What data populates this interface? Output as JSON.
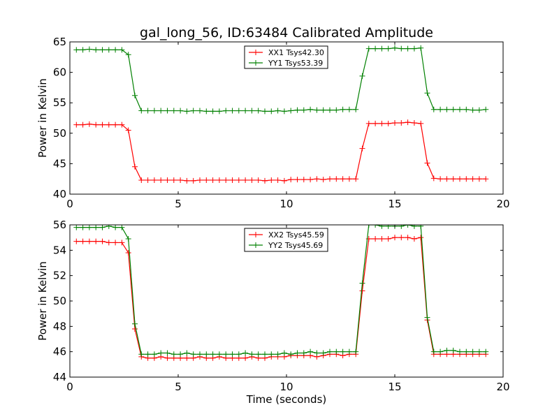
{
  "title": "gal_long_56, ID:63484 Calibrated Amplitude",
  "chart_data": [
    {
      "type": "line",
      "xlim": [
        0,
        20
      ],
      "ylim": [
        40,
        65
      ],
      "xticks": [
        0,
        5,
        10,
        15,
        20
      ],
      "yticks": [
        40,
        45,
        50,
        55,
        60,
        65
      ],
      "xlabel": "",
      "ylabel": "Power in Kelvin",
      "grid": false,
      "legend_position": "top-center",
      "x": [
        0.3,
        0.6,
        0.9,
        1.2,
        1.5,
        1.8,
        2.1,
        2.4,
        2.7,
        3.0,
        3.3,
        3.6,
        3.9,
        4.2,
        4.5,
        4.8,
        5.1,
        5.4,
        5.7,
        6.0,
        6.3,
        6.6,
        6.9,
        7.2,
        7.5,
        7.8,
        8.1,
        8.4,
        8.7,
        9.0,
        9.3,
        9.6,
        9.9,
        10.2,
        10.5,
        10.8,
        11.1,
        11.4,
        11.7,
        12.0,
        12.3,
        12.6,
        12.9,
        13.2,
        13.5,
        13.8,
        14.1,
        14.4,
        14.7,
        15.0,
        15.3,
        15.6,
        15.9,
        16.2,
        16.5,
        16.8,
        17.1,
        17.4,
        17.7,
        18.0,
        18.3,
        18.6,
        18.9,
        19.2
      ],
      "series": [
        {
          "name": "XX1 Tsys42.30",
          "color": "#ff0000",
          "values": [
            51.4,
            51.4,
            51.5,
            51.4,
            51.4,
            51.4,
            51.4,
            51.4,
            50.5,
            44.5,
            42.3,
            42.3,
            42.3,
            42.3,
            42.3,
            42.3,
            42.3,
            42.2,
            42.2,
            42.3,
            42.3,
            42.3,
            42.3,
            42.3,
            42.3,
            42.3,
            42.3,
            42.3,
            42.3,
            42.2,
            42.3,
            42.3,
            42.2,
            42.4,
            42.4,
            42.4,
            42.4,
            42.5,
            42.4,
            42.5,
            42.5,
            42.5,
            42.5,
            42.5,
            47.5,
            51.6,
            51.6,
            51.6,
            51.6,
            51.7,
            51.7,
            51.8,
            51.7,
            51.6,
            45.1,
            42.6,
            42.5,
            42.5,
            42.5,
            42.5,
            42.5,
            42.5,
            42.5,
            42.5
          ]
        },
        {
          "name": "YY1 Tsys53.39",
          "color": "#008000",
          "values": [
            63.7,
            63.7,
            63.8,
            63.7,
            63.7,
            63.7,
            63.7,
            63.7,
            62.9,
            56.2,
            53.7,
            53.7,
            53.7,
            53.7,
            53.7,
            53.7,
            53.7,
            53.6,
            53.7,
            53.7,
            53.6,
            53.6,
            53.6,
            53.7,
            53.7,
            53.7,
            53.7,
            53.7,
            53.7,
            53.6,
            53.6,
            53.7,
            53.6,
            53.7,
            53.8,
            53.8,
            53.9,
            53.8,
            53.8,
            53.8,
            53.8,
            53.9,
            53.9,
            53.9,
            59.4,
            63.9,
            63.9,
            63.9,
            63.9,
            64.0,
            63.9,
            63.9,
            63.9,
            64.0,
            56.6,
            53.9,
            53.9,
            53.9,
            53.9,
            53.9,
            53.9,
            53.8,
            53.8,
            53.9
          ]
        }
      ]
    },
    {
      "type": "line",
      "xlim": [
        0,
        20
      ],
      "ylim": [
        44,
        56
      ],
      "xticks": [
        0,
        5,
        10,
        15,
        20
      ],
      "yticks": [
        44,
        46,
        48,
        50,
        52,
        54,
        56
      ],
      "xlabel": "Time (seconds)",
      "ylabel": "Power in Kelvin",
      "grid": false,
      "legend_position": "top-center",
      "x": [
        0.3,
        0.6,
        0.9,
        1.2,
        1.5,
        1.8,
        2.1,
        2.4,
        2.7,
        3.0,
        3.3,
        3.6,
        3.9,
        4.2,
        4.5,
        4.8,
        5.1,
        5.4,
        5.7,
        6.0,
        6.3,
        6.6,
        6.9,
        7.2,
        7.5,
        7.8,
        8.1,
        8.4,
        8.7,
        9.0,
        9.3,
        9.6,
        9.9,
        10.2,
        10.5,
        10.8,
        11.1,
        11.4,
        11.7,
        12.0,
        12.3,
        12.6,
        12.9,
        13.2,
        13.5,
        13.8,
        14.1,
        14.4,
        14.7,
        15.0,
        15.3,
        15.6,
        15.9,
        16.2,
        16.5,
        16.8,
        17.1,
        17.4,
        17.7,
        18.0,
        18.3,
        18.6,
        18.9,
        19.2
      ],
      "series": [
        {
          "name": "XX2 Tsys45.59",
          "color": "#ff0000",
          "values": [
            54.7,
            54.7,
            54.7,
            54.7,
            54.7,
            54.6,
            54.6,
            54.6,
            53.8,
            47.8,
            45.6,
            45.5,
            45.5,
            45.6,
            45.5,
            45.5,
            45.5,
            45.5,
            45.5,
            45.6,
            45.5,
            45.5,
            45.6,
            45.5,
            45.5,
            45.5,
            45.5,
            45.6,
            45.5,
            45.5,
            45.6,
            45.6,
            45.6,
            45.7,
            45.7,
            45.7,
            45.7,
            45.6,
            45.7,
            45.8,
            45.8,
            45.7,
            45.8,
            45.8,
            50.8,
            54.9,
            54.9,
            54.9,
            54.9,
            55.0,
            55.0,
            55.0,
            54.9,
            55.0,
            48.5,
            45.8,
            45.8,
            45.8,
            45.8,
            45.8,
            45.8,
            45.8,
            45.8,
            45.8
          ]
        },
        {
          "name": "YY2 Tsys45.69",
          "color": "#008000",
          "values": [
            55.8,
            55.8,
            55.8,
            55.8,
            55.8,
            55.9,
            55.8,
            55.8,
            54.9,
            48.2,
            45.8,
            45.8,
            45.8,
            45.9,
            45.9,
            45.8,
            45.8,
            45.9,
            45.8,
            45.8,
            45.8,
            45.8,
            45.8,
            45.8,
            45.8,
            45.8,
            45.9,
            45.8,
            45.8,
            45.8,
            45.8,
            45.8,
            45.9,
            45.8,
            45.9,
            45.9,
            46.0,
            45.9,
            45.9,
            46.0,
            46.0,
            46.0,
            46.0,
            46.0,
            51.4,
            56.0,
            56.0,
            55.9,
            55.9,
            55.9,
            55.9,
            56.0,
            55.9,
            55.9,
            48.7,
            46.0,
            46.0,
            46.1,
            46.1,
            46.0,
            46.0,
            46.0,
            46.0,
            46.0
          ]
        }
      ]
    }
  ]
}
